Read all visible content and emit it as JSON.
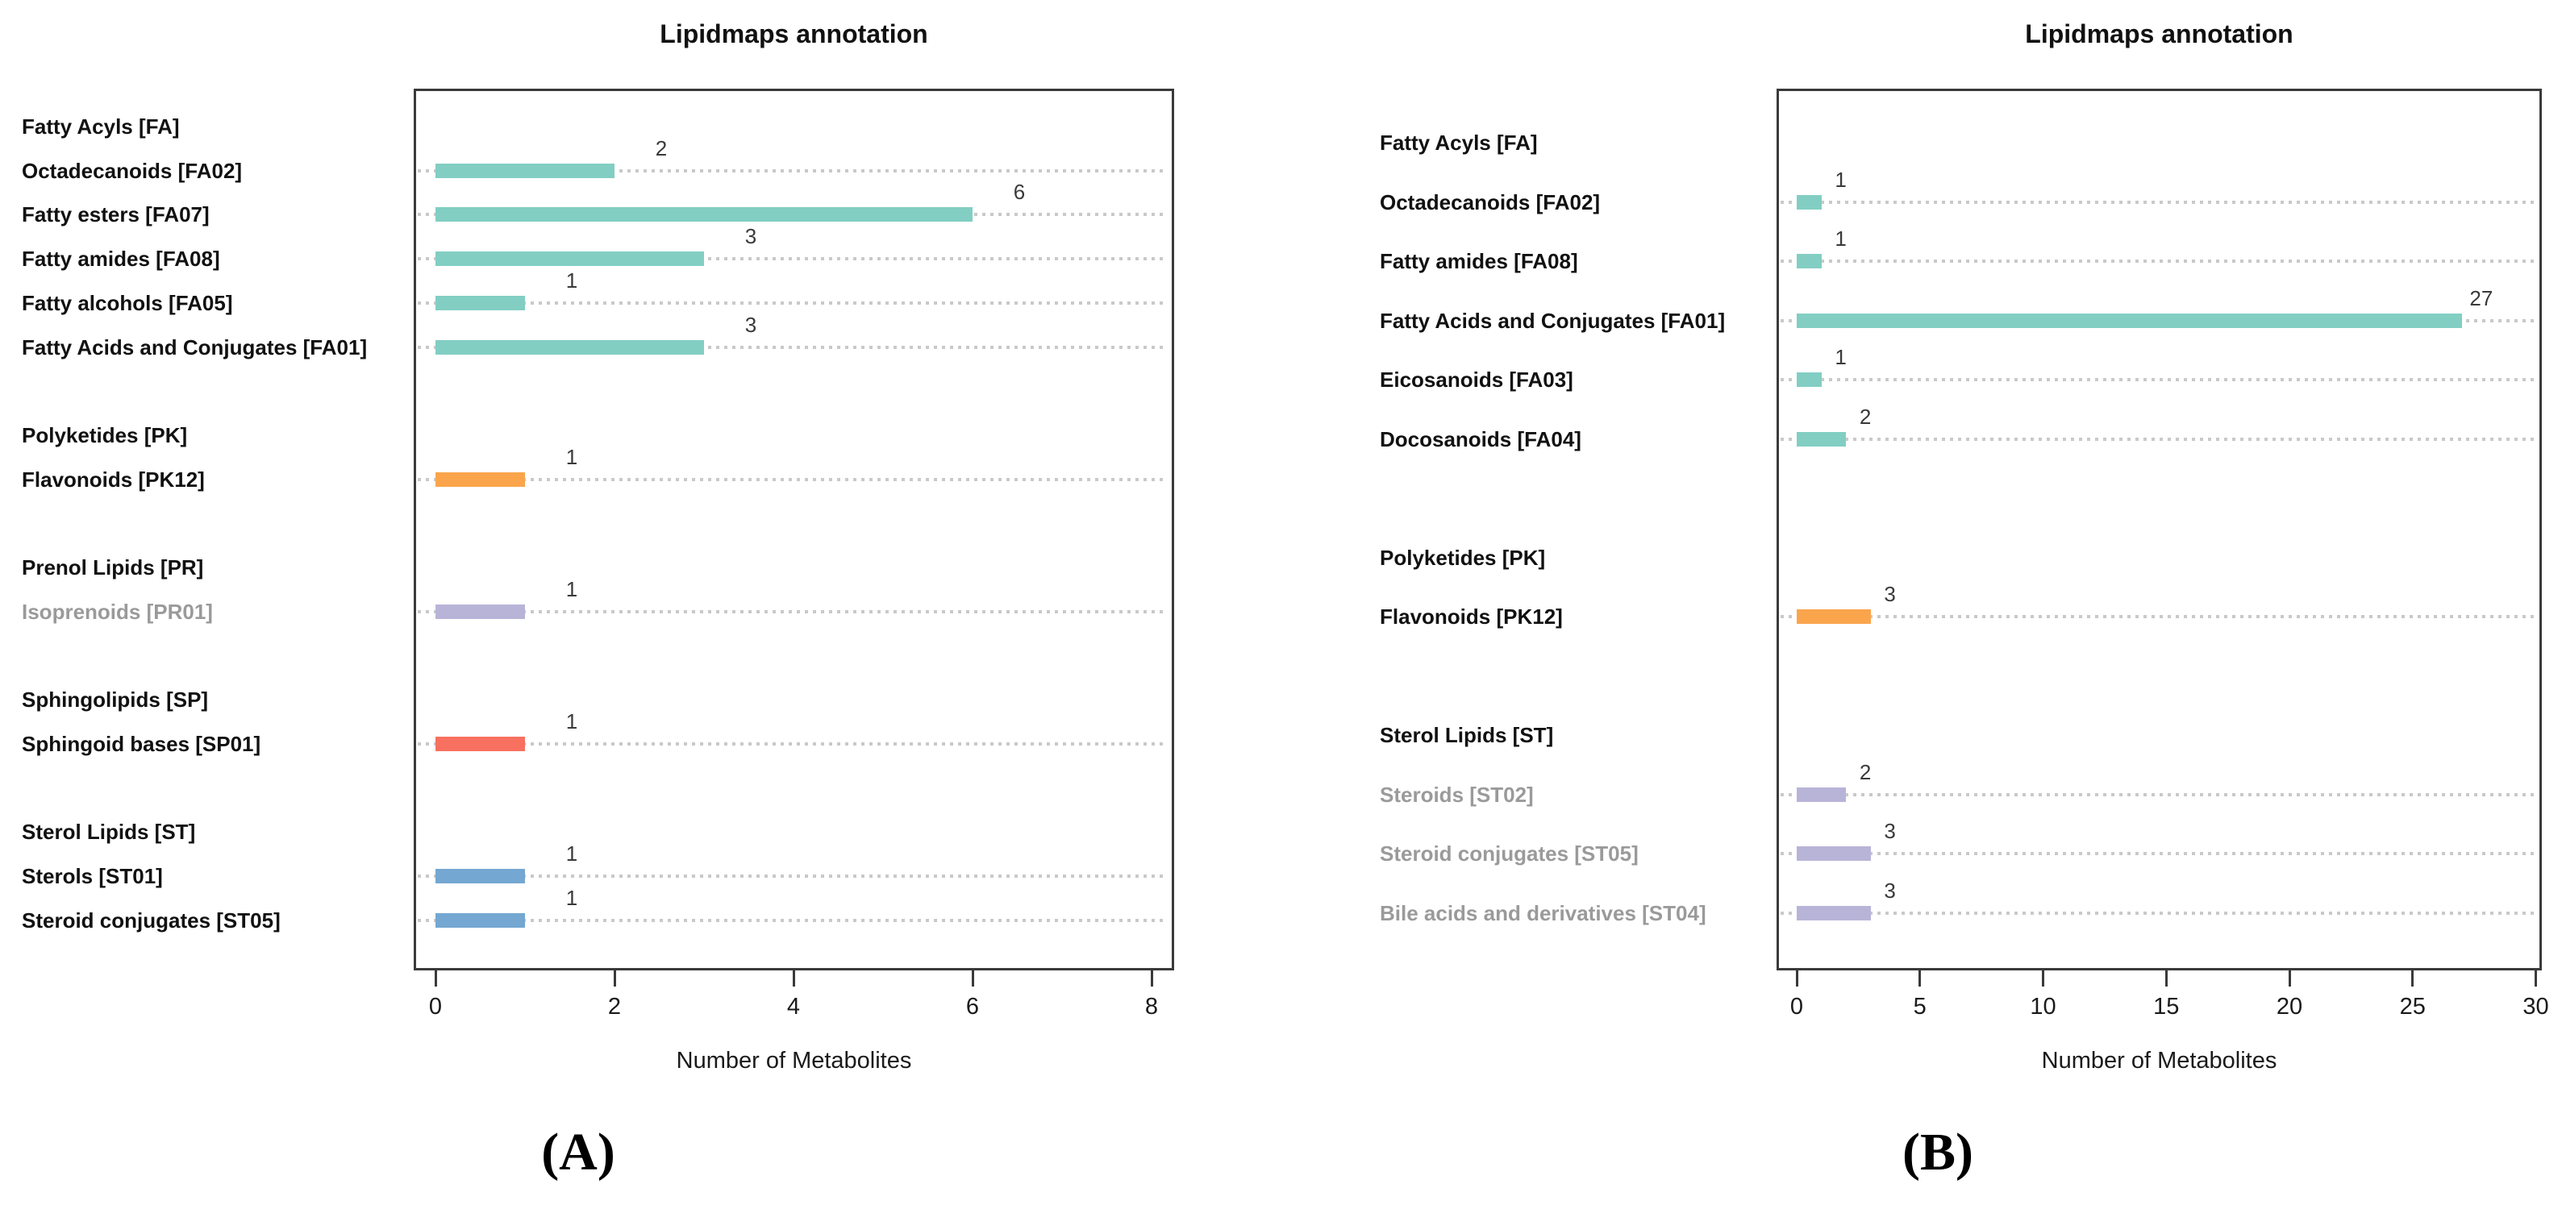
{
  "figure": {
    "background": "#ffffff",
    "captions": [
      "(A)",
      "(B)"
    ]
  },
  "colors": {
    "teal": "#82CEC3",
    "orange": "#FAA54C",
    "purple": "#B8B4D8",
    "red": "#F8705F",
    "blue": "#74A7D1",
    "label_default": "#111111",
    "label_muted": "#9A9A9A",
    "value_label": "#3A3A3A",
    "grid_dotted": "#C9C9C9",
    "plot_border": "#3A3A3A",
    "axis_text": "#1A1A1A"
  },
  "chart_data": [
    {
      "type": "bar",
      "orientation": "horizontal",
      "title": "Lipidmaps annotation",
      "xlabel": "Number of Metabolites",
      "caption": "(A)",
      "xlim": [
        0,
        8.25
      ],
      "xticks": [
        0,
        2,
        4,
        6,
        8
      ],
      "grid": "dotted row guides",
      "legend": false,
      "rows": [
        {
          "type": "header",
          "label": "Fatty Acyls [FA]"
        },
        {
          "type": "bar",
          "label": "Octadecanoids [FA02]",
          "value": 2,
          "color": "teal"
        },
        {
          "type": "bar",
          "label": "Fatty esters [FA07]",
          "value": 6,
          "color": "teal"
        },
        {
          "type": "bar",
          "label": "Fatty amides [FA08]",
          "value": 3,
          "color": "teal"
        },
        {
          "type": "bar",
          "label": "Fatty alcohols [FA05]",
          "value": 1,
          "color": "teal"
        },
        {
          "type": "bar",
          "label": "Fatty Acids and Conjugates [FA01]",
          "value": 3,
          "color": "teal"
        },
        {
          "type": "spacer"
        },
        {
          "type": "header",
          "label": "Polyketides [PK]"
        },
        {
          "type": "bar",
          "label": "Flavonoids [PK12]",
          "value": 1,
          "color": "orange"
        },
        {
          "type": "spacer"
        },
        {
          "type": "header",
          "label": "Prenol Lipids [PR]"
        },
        {
          "type": "bar",
          "label": "Isoprenoids [PR01]",
          "value": 1,
          "color": "purple",
          "muted_label": true
        },
        {
          "type": "spacer"
        },
        {
          "type": "header",
          "label": "Sphingolipids [SP]"
        },
        {
          "type": "bar",
          "label": "Sphingoid bases [SP01]",
          "value": 1,
          "color": "red"
        },
        {
          "type": "spacer"
        },
        {
          "type": "header",
          "label": "Sterol Lipids [ST]"
        },
        {
          "type": "bar",
          "label": "Sterols [ST01]",
          "value": 1,
          "color": "blue"
        },
        {
          "type": "bar",
          "label": "Steroid conjugates [ST05]",
          "value": 1,
          "color": "blue"
        }
      ]
    },
    {
      "type": "bar",
      "orientation": "horizontal",
      "title": "Lipidmaps annotation",
      "xlabel": "Number of Metabolites",
      "caption": "(B)",
      "xlim": [
        0,
        30.25
      ],
      "xticks": [
        0,
        5,
        10,
        15,
        20,
        25,
        30
      ],
      "grid": "dotted row guides",
      "legend": false,
      "rows": [
        {
          "type": "header",
          "label": "Fatty Acyls [FA]"
        },
        {
          "type": "bar",
          "label": "Octadecanoids [FA02]",
          "value": 1,
          "color": "teal"
        },
        {
          "type": "bar",
          "label": "Fatty amides [FA08]",
          "value": 1,
          "color": "teal"
        },
        {
          "type": "bar",
          "label": "Fatty Acids and Conjugates [FA01]",
          "value": 27,
          "color": "teal"
        },
        {
          "type": "bar",
          "label": "Eicosanoids [FA03]",
          "value": 1,
          "color": "teal"
        },
        {
          "type": "bar",
          "label": "Docosanoids [FA04]",
          "value": 2,
          "color": "teal"
        },
        {
          "type": "spacer"
        },
        {
          "type": "header",
          "label": "Polyketides [PK]"
        },
        {
          "type": "bar",
          "label": "Flavonoids [PK12]",
          "value": 3,
          "color": "orange"
        },
        {
          "type": "spacer"
        },
        {
          "type": "header",
          "label": "Sterol Lipids [ST]"
        },
        {
          "type": "bar",
          "label": "Steroids [ST02]",
          "value": 2,
          "color": "purple",
          "muted_label": true
        },
        {
          "type": "bar",
          "label": "Steroid conjugates [ST05]",
          "value": 3,
          "color": "purple",
          "muted_label": true
        },
        {
          "type": "bar",
          "label": "Bile acids and derivatives [ST04]",
          "value": 3,
          "color": "purple",
          "muted_label": true
        }
      ]
    }
  ]
}
